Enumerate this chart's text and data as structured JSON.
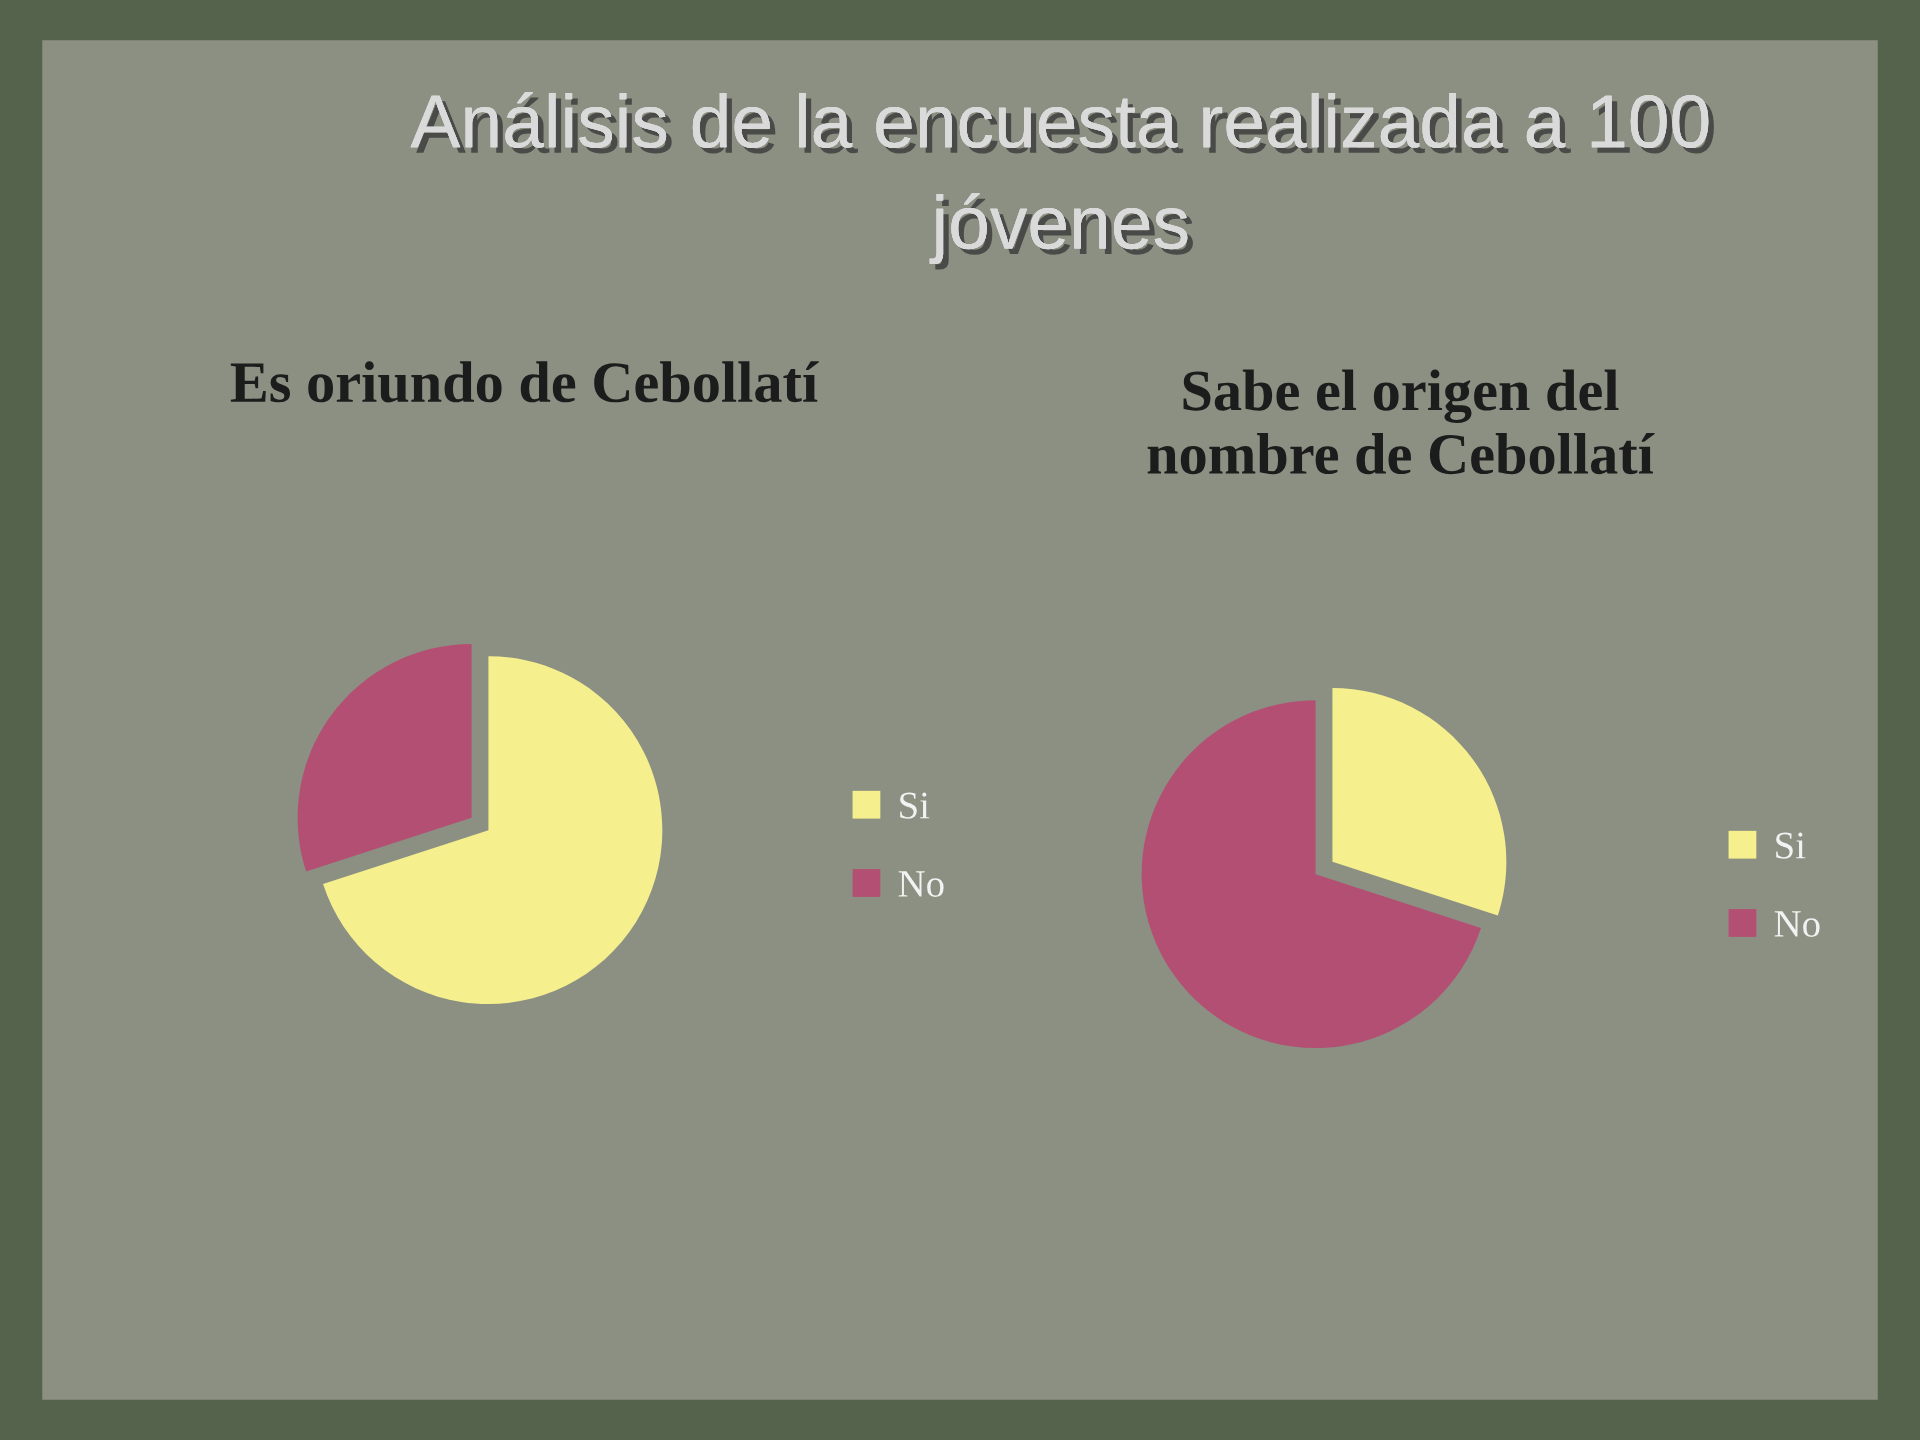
{
  "chart_data": [
    {
      "type": "other",
      "title": "Análisis de la encuesta realizada a 100\njóvenes"
    },
    {
      "type": "pie",
      "title": "Es oriundo de Cebollatí",
      "categories": [
        "Si",
        "No"
      ],
      "values": [
        70,
        30
      ],
      "colors": [
        "#f6ef8e",
        "#b44f74"
      ],
      "legend": "right"
    },
    {
      "type": "pie",
      "title": "Sabe el origen del\nnombre de Cebollatí",
      "categories": [
        "Si",
        "No"
      ],
      "values": [
        30,
        70
      ],
      "colors": [
        "#f6ef8e",
        "#b44f74"
      ],
      "legend": "right"
    }
  ]
}
